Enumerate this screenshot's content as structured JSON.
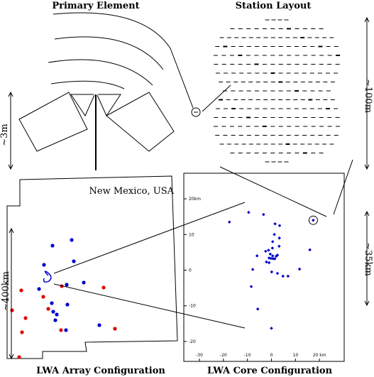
{
  "panels": {
    "primary_element": {
      "title": "Primary Element",
      "scale_label": "~3m"
    },
    "station_layout": {
      "title": "Station Layout",
      "scale_label": "~100m"
    },
    "array_config": {
      "title": "LWA Array Configuration",
      "region_label": "New Mexico, USA",
      "scale_label": "~400km"
    },
    "core_config": {
      "title": "LWA Core Configuration",
      "scale_label": "~35km"
    }
  },
  "colors": {
    "station_blue": "#0000cc",
    "station_red": "#dd0000",
    "ink": "#000000"
  },
  "chart_data": {
    "type": "scatter",
    "title": "LWA Core Configuration",
    "xlabel": "",
    "ylabel": "",
    "xlim": [
      -30,
      30
    ],
    "ylim": [
      -23,
      23
    ],
    "x_ticks": [
      -30,
      -20,
      -10,
      0,
      10,
      20
    ],
    "x_tick_labels": [
      "-30",
      "-20",
      "-10",
      "0",
      "10",
      "20 km"
    ],
    "y_ticks": [
      20,
      10,
      0,
      -10,
      -20
    ],
    "y_tick_labels": [
      "20km",
      "10",
      "0",
      "-10",
      "-20"
    ],
    "grid": false,
    "series": [
      {
        "points": [
          [
            -17.5,
            13.5
          ],
          [
            -9.5,
            16.2
          ],
          [
            -3.3,
            15.6
          ],
          [
            1.5,
            13
          ],
          [
            3.4,
            12.5
          ],
          [
            1.2,
            10
          ],
          [
            3.3,
            9
          ],
          [
            0.5,
            8
          ],
          [
            0.4,
            6.2
          ],
          [
            3.2,
            6.7
          ],
          [
            -2.4,
            5.3
          ],
          [
            -1.2,
            5.6
          ],
          [
            -0.5,
            4.5
          ],
          [
            -6,
            4
          ],
          [
            2.5,
            4.2
          ],
          [
            0.5,
            4
          ],
          [
            2,
            3.9
          ],
          [
            -0.2,
            3.3
          ],
          [
            0.7,
            3.2
          ],
          [
            1.4,
            3.2
          ],
          [
            -1,
            3.4
          ],
          [
            -2.1,
            2.3
          ],
          [
            16,
            5.7
          ],
          [
            -7.8,
            0.2
          ],
          [
            -1,
            2.1
          ],
          [
            0.1,
            -0.5
          ],
          [
            2.5,
            -0.9
          ],
          [
            4.8,
            -1.7
          ],
          [
            6.9,
            -1.7
          ],
          [
            11.7,
            0.3
          ],
          [
            -8.4,
            -4.6
          ],
          [
            -5.7,
            -10.9
          ],
          [
            0,
            -16.3
          ],
          [
            17.4,
            14
          ]
        ]
      }
    ]
  },
  "array_stations": {
    "blue": [
      [
        64,
        93
      ],
      [
        91,
        85
      ],
      [
        94,
        115
      ],
      [
        84,
        148
      ],
      [
        108,
        145
      ],
      [
        83,
        212
      ],
      [
        52,
        120
      ],
      [
        45,
        154
      ],
      [
        85,
        176
      ],
      [
        130,
        205
      ],
      [
        63,
        174
      ],
      [
        68,
        198
      ],
      [
        70,
        190
      ],
      [
        65,
        186
      ]
    ],
    "red": [
      [
        51,
        165
      ],
      [
        20,
        156
      ],
      [
        7,
        184
      ],
      [
        21,
        215
      ],
      [
        17,
        250
      ],
      [
        77,
        150
      ],
      [
        58,
        182
      ],
      [
        136,
        152
      ],
      [
        152,
        210
      ],
      [
        76,
        212
      ],
      [
        26,
        195
      ]
    ]
  }
}
